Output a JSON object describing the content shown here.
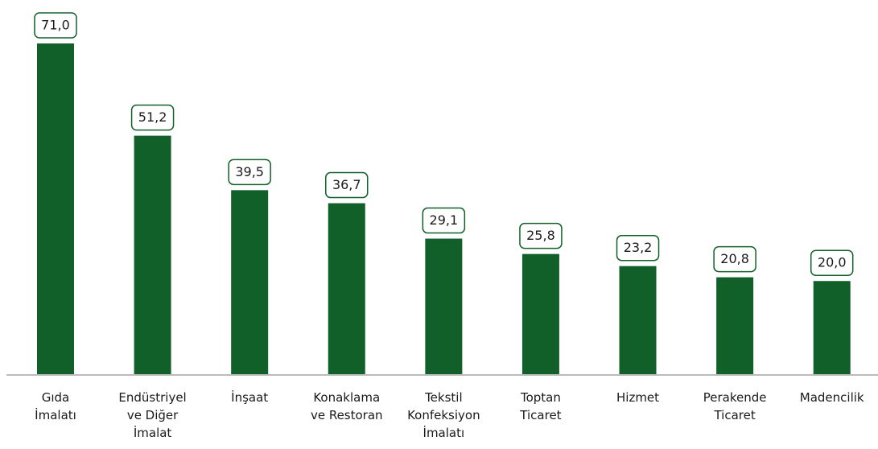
{
  "chart_data": {
    "type": "bar",
    "categories": [
      "Gıda\nİmalatı",
      "Endüstriyel\nve Diğer\nİmalat",
      "İnşaat",
      "Konaklama\nve Restoran",
      "Tekstil\nKonfeksiyon\nİmalatı",
      "Toptan\nTicaret",
      "Hizmet",
      "Perakende\nTicaret",
      "Madencilik"
    ],
    "values": [
      71.0,
      51.2,
      39.5,
      36.7,
      29.1,
      25.8,
      23.2,
      20.8,
      20.0
    ],
    "value_labels": [
      "71,0",
      "51,2",
      "39,5",
      "36,7",
      "29,1",
      "25,8",
      "23,2",
      "20,8",
      "20,0"
    ],
    "color": "#11602a"
  }
}
